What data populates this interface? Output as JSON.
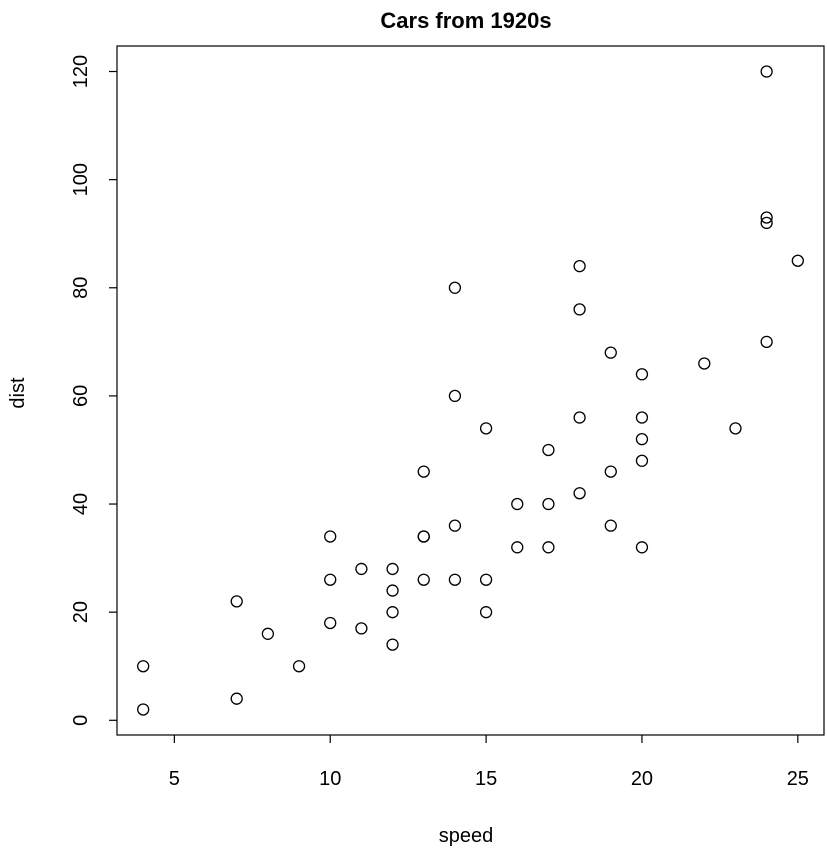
{
  "chart_data": {
    "type": "scatter",
    "title": "Cars from 1920s",
    "xlabel": "speed",
    "ylabel": "dist",
    "xlim": [
      3.16,
      25.84
    ],
    "ylim": [
      -2.72,
      124.72
    ],
    "xticks": [
      5,
      10,
      15,
      20,
      25
    ],
    "yticks": [
      0,
      20,
      40,
      60,
      80,
      100,
      120
    ],
    "grid": false,
    "marker": "open-circle",
    "x": [
      4,
      4,
      7,
      7,
      8,
      9,
      10,
      10,
      10,
      11,
      11,
      12,
      12,
      12,
      12,
      13,
      13,
      13,
      13,
      14,
      14,
      14,
      14,
      15,
      15,
      15,
      16,
      16,
      17,
      17,
      17,
      18,
      18,
      18,
      18,
      19,
      19,
      19,
      20,
      20,
      20,
      20,
      20,
      22,
      23,
      24,
      24,
      24,
      24,
      25
    ],
    "y": [
      2,
      10,
      4,
      22,
      16,
      10,
      18,
      26,
      34,
      17,
      28,
      14,
      20,
      24,
      28,
      26,
      34,
      34,
      46,
      26,
      36,
      60,
      80,
      20,
      26,
      54,
      32,
      40,
      32,
      40,
      50,
      42,
      56,
      76,
      84,
      36,
      46,
      68,
      32,
      48,
      52,
      56,
      64,
      66,
      54,
      70,
      92,
      93,
      120,
      85
    ]
  }
}
